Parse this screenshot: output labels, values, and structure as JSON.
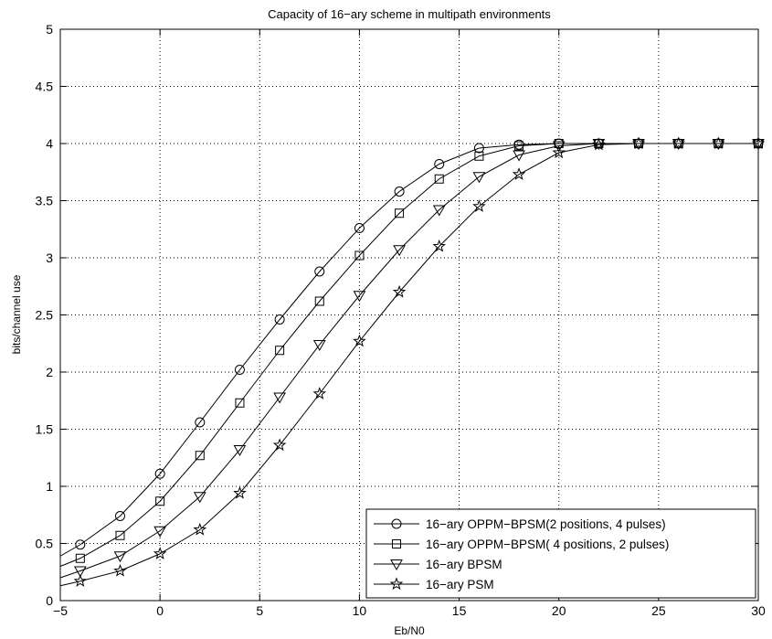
{
  "chart_data": {
    "type": "line",
    "title": "Capacity of 16−ary scheme in multipath environments",
    "xlabel": "Eb/N0",
    "ylabel": "bits/channel use",
    "xlim": [
      -5,
      30
    ],
    "ylim": [
      0,
      5
    ],
    "xticks": [
      -5,
      0,
      5,
      10,
      15,
      20,
      25,
      30
    ],
    "xtick_labels": [
      "−5",
      "0",
      "5",
      "10",
      "15",
      "20",
      "25",
      "30"
    ],
    "yticks": [
      0,
      0.5,
      1,
      1.5,
      2,
      2.5,
      3,
      3.5,
      4,
      4.5,
      5
    ],
    "ytick_labels": [
      "0",
      "0.5",
      "1",
      "1.5",
      "2",
      "2.5",
      "3",
      "3.5",
      "4",
      "4.5",
      "5"
    ],
    "grid": true,
    "legend_position": "bottom-right",
    "series": [
      {
        "name": "16−ary OPPM−BPSM(2 positions, 4 pulses)",
        "marker": "circle",
        "x": [
          -5,
          -4,
          -2,
          0,
          2,
          4,
          6,
          8,
          10,
          12,
          14,
          16,
          18,
          20,
          22,
          24,
          26,
          28,
          30
        ],
        "y": [
          0.39,
          0.49,
          0.74,
          1.11,
          1.56,
          2.02,
          2.46,
          2.88,
          3.26,
          3.58,
          3.82,
          3.96,
          3.99,
          4.0,
          4.0,
          4.0,
          4.0,
          4.0,
          4.0
        ]
      },
      {
        "name": "16−ary OPPM−BPSM( 4 positions, 2 pulses)",
        "marker": "square",
        "x": [
          -5,
          -4,
          -2,
          0,
          2,
          4,
          6,
          8,
          10,
          12,
          14,
          16,
          18,
          20,
          22,
          24,
          26,
          28,
          30
        ],
        "y": [
          0.3,
          0.37,
          0.57,
          0.87,
          1.27,
          1.73,
          2.19,
          2.62,
          3.02,
          3.39,
          3.69,
          3.89,
          3.98,
          4.0,
          4.0,
          4.0,
          4.0,
          4.0,
          4.0
        ]
      },
      {
        "name": "16−ary BPSM",
        "marker": "triangle-down",
        "x": [
          -5,
          -4,
          -2,
          0,
          2,
          4,
          6,
          8,
          10,
          12,
          14,
          16,
          18,
          20,
          22,
          24,
          26,
          28,
          30
        ],
        "y": [
          0.2,
          0.26,
          0.39,
          0.61,
          0.91,
          1.32,
          1.78,
          2.24,
          2.67,
          3.07,
          3.42,
          3.71,
          3.9,
          3.98,
          4.0,
          4.0,
          4.0,
          4.0,
          4.0
        ]
      },
      {
        "name": "16−ary PSM",
        "marker": "star",
        "x": [
          -5,
          -4,
          -2,
          0,
          2,
          4,
          6,
          8,
          10,
          12,
          14,
          16,
          18,
          20,
          22,
          24,
          26,
          28,
          30
        ],
        "y": [
          0.13,
          0.17,
          0.26,
          0.41,
          0.62,
          0.94,
          1.36,
          1.81,
          2.27,
          2.7,
          3.1,
          3.45,
          3.73,
          3.92,
          3.99,
          4.0,
          4.0,
          4.0,
          4.0
        ]
      }
    ],
    "colors": {
      "line": "#000000",
      "grid": "#000000",
      "background": "#ffffff"
    }
  }
}
